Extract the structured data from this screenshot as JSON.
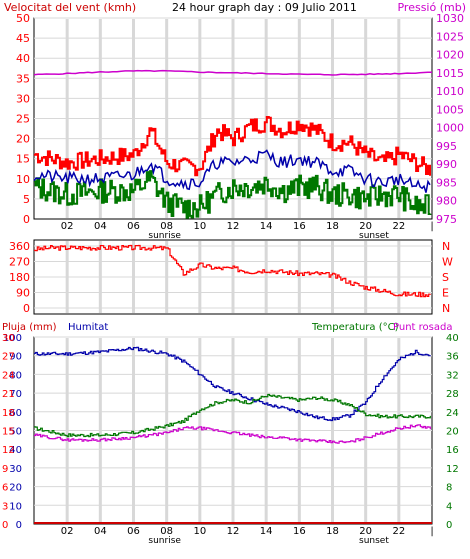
{
  "header": {
    "wind_label": "Velocitat del vent (kmh)",
    "title": "24 hour graph day : 09 Julio 2011",
    "pressure_label": "Pressió (mb)"
  },
  "bottom_labels": {
    "rain": "Pluja (mm)",
    "humidity": "Humitat",
    "temperature": "Temperatura (°C)",
    "dewpoint": "Punt rosada"
  },
  "colors": {
    "red": "#ff0000",
    "dark_red": "#cc0000",
    "magenta": "#cc00cc",
    "blue": "#0000aa",
    "green": "#007700",
    "grid": "#d8d8d8"
  },
  "chart_data": [
    {
      "type": "line",
      "panel": "wind-pressure",
      "x_ticks": [
        "02",
        "04",
        "06",
        "08",
        "10",
        "12",
        "14",
        "16",
        "18",
        "20",
        "22"
      ],
      "x_markers": [
        "sunrise",
        "sunset"
      ],
      "left_axis": {
        "ticks": [
          0,
          5,
          10,
          15,
          20,
          25,
          30,
          35,
          40,
          45,
          50
        ],
        "ylim": [
          0,
          50
        ]
      },
      "right_axis": {
        "ticks": [
          975,
          980,
          985,
          990,
          995,
          1000,
          1005,
          1010,
          1015,
          1020,
          1025,
          1030
        ],
        "ylim": [
          975,
          1030
        ]
      },
      "series": [
        {
          "color": "red",
          "x": [
            0,
            2,
            4,
            6,
            7,
            8,
            9,
            10,
            11,
            12,
            13,
            14,
            15,
            16,
            17,
            18,
            19,
            20,
            21,
            22,
            23,
            24
          ],
          "y": [
            16,
            14,
            15,
            16,
            22,
            14,
            13,
            13,
            22,
            20,
            23,
            24,
            22,
            24,
            22,
            19,
            19,
            16,
            14,
            16,
            14,
            12
          ]
        },
        {
          "color": "blue",
          "x": [
            0,
            2,
            4,
            6,
            7,
            8,
            9,
            10,
            11,
            12,
            13,
            14,
            15,
            16,
            17,
            18,
            19,
            20,
            21,
            22,
            23,
            24
          ],
          "y": [
            11,
            10,
            10,
            11,
            14,
            10,
            9,
            9,
            14,
            14,
            15,
            16,
            14,
            15,
            14,
            12,
            12,
            10,
            9,
            10,
            8,
            8
          ]
        },
        {
          "color": "green",
          "x": [
            0,
            2,
            4,
            6,
            7,
            8,
            9,
            10,
            11,
            12,
            13,
            14,
            15,
            16,
            17,
            18,
            19,
            20,
            21,
            22,
            23,
            24
          ],
          "y": [
            8,
            6,
            7,
            7,
            10,
            4,
            3,
            3,
            6,
            8,
            8,
            9,
            7,
            8,
            8,
            6,
            6,
            5,
            6,
            6,
            3,
            3
          ]
        },
        {
          "color": "magenta",
          "axis": "right",
          "x": [
            0,
            2,
            4,
            6,
            8,
            10,
            12,
            14,
            16,
            18,
            20,
            22,
            24
          ],
          "y": [
            1014.5,
            1014.8,
            1015.2,
            1015.5,
            1015.5,
            1015.2,
            1015,
            1014.8,
            1014.6,
            1014.5,
            1014.6,
            1014.8,
            1015.2
          ]
        }
      ]
    },
    {
      "type": "line",
      "panel": "wind-direction",
      "left_axis": {
        "ticks": [
          0,
          90,
          180,
          270,
          360
        ],
        "ylim": [
          0,
          360
        ]
      },
      "right_axis_labels": [
        "N",
        "W",
        "S",
        "E",
        "N"
      ],
      "series": [
        {
          "color": "red",
          "x": [
            0,
            1,
            2,
            3,
            4,
            5,
            6,
            7,
            8,
            9,
            10,
            11,
            12,
            13,
            14,
            15,
            16,
            17,
            18,
            19,
            20,
            21,
            22,
            23,
            24
          ],
          "y": [
            340,
            350,
            350,
            350,
            350,
            350,
            350,
            350,
            345,
            200,
            250,
            230,
            230,
            210,
            220,
            210,
            200,
            200,
            190,
            150,
            120,
            100,
            80,
            80,
            80
          ]
        }
      ]
    },
    {
      "type": "line",
      "panel": "humidity-temperature",
      "x_ticks": [
        "02",
        "04",
        "06",
        "08",
        "10",
        "12",
        "14",
        "16",
        "18",
        "20",
        "22"
      ],
      "x_markers": [
        "sunrise",
        "sunset"
      ],
      "rain_axis": {
        "ticks": [
          0,
          3,
          6,
          9,
          12,
          15,
          18,
          21,
          24,
          27,
          30
        ],
        "ylim": [
          0,
          30
        ]
      },
      "humidity_axis": {
        "ticks": [
          0,
          10,
          20,
          30,
          40,
          50,
          60,
          70,
          80,
          90,
          100
        ],
        "ylim": [
          0,
          100
        ]
      },
      "temperature_axis": {
        "ticks": [
          0,
          4,
          8,
          12,
          16,
          20,
          24,
          28,
          32,
          36,
          40
        ],
        "ylim": [
          0,
          40
        ]
      },
      "series": [
        {
          "color": "blue",
          "axis": "humidity",
          "x": [
            0,
            2,
            4,
            6,
            8,
            9,
            10,
            11,
            12,
            13,
            14,
            15,
            16,
            17,
            18,
            19,
            20,
            21,
            22,
            23,
            24
          ],
          "y": [
            91,
            91,
            92,
            94,
            91,
            87,
            80,
            73,
            70,
            67,
            64,
            62,
            60,
            57,
            56,
            58,
            65,
            78,
            88,
            92,
            90
          ]
        },
        {
          "color": "green",
          "axis": "temperature",
          "x": [
            0,
            2,
            4,
            6,
            8,
            9,
            10,
            11,
            12,
            13,
            14,
            15,
            16,
            17,
            18,
            19,
            20,
            21,
            22,
            23,
            24
          ],
          "y": [
            20.5,
            19,
            19,
            19.5,
            21,
            22,
            24.5,
            26,
            26.5,
            26,
            27.5,
            27,
            26.5,
            27,
            26.5,
            25.5,
            23.5,
            23,
            23,
            23,
            23
          ]
        },
        {
          "color": "magenta",
          "axis": "temperature",
          "x": [
            0,
            2,
            4,
            6,
            8,
            9,
            10,
            11,
            12,
            13,
            14,
            15,
            16,
            17,
            18,
            19,
            20,
            21,
            22,
            23,
            24
          ],
          "y": [
            19,
            18,
            18,
            18.5,
            19.5,
            20.5,
            20.5,
            20,
            19.5,
            19,
            18.5,
            18.5,
            18,
            17.8,
            17.5,
            17.5,
            18.5,
            19.5,
            20.5,
            21,
            20.5
          ]
        },
        {
          "color": "dark_red",
          "axis": "rain",
          "x": [
            0,
            24
          ],
          "y": [
            0,
            0
          ]
        }
      ]
    }
  ]
}
